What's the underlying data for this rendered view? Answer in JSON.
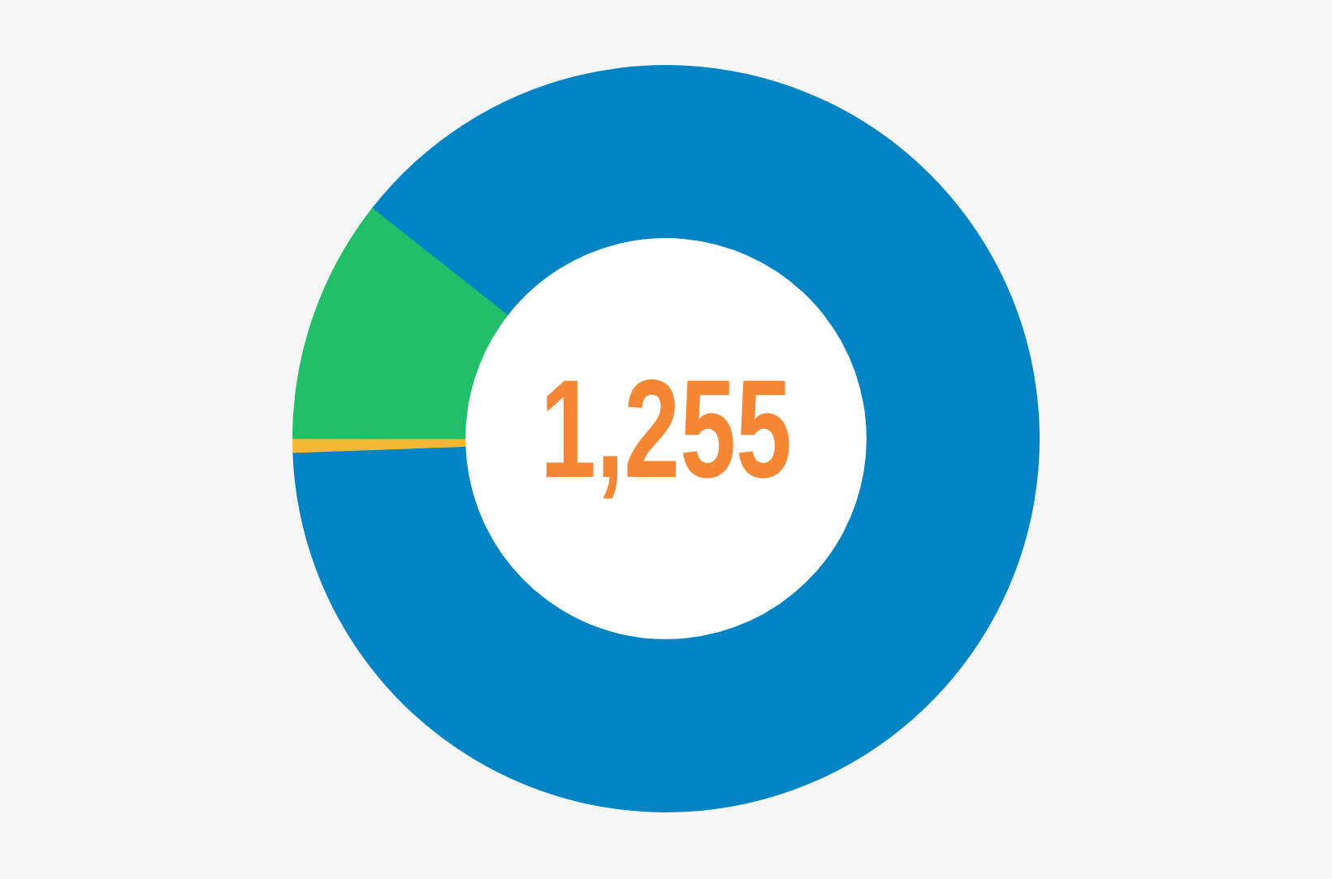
{
  "chart_data": {
    "type": "donut",
    "categories": [
      null,
      null,
      null,
      null,
      null
    ],
    "values": [
      83.4,
      0.6,
      9.6,
      1,
      5.4
    ],
    "colors": [
      "#0284c4",
      "#f5b836",
      "#22bf6a",
      "#22bf6a",
      "#0284c4"
    ],
    "annotations": [
      "1,255"
    ],
    "legend": false
  }
}
